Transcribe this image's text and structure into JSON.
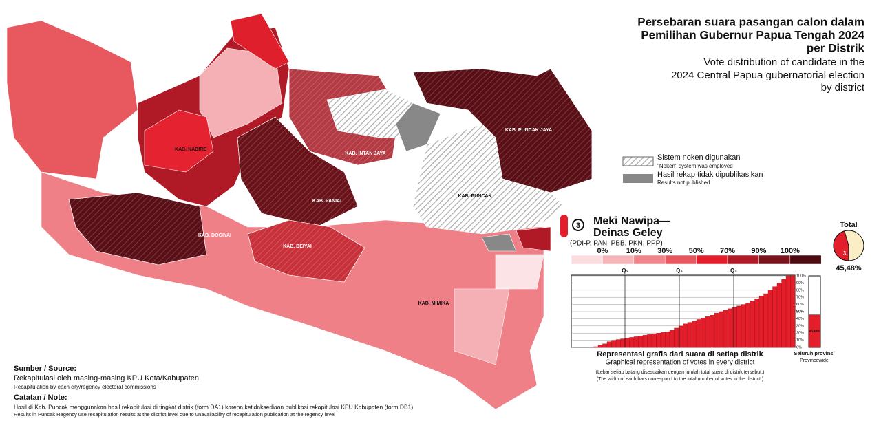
{
  "header": {
    "title": [
      "Persebaran suara pasangan calon dalam",
      "Pemilihan Gubernur Papua Tengah 2024",
      "per Distrik"
    ],
    "subtitle": [
      "Vote distribution of candidate in the",
      "2024 Central Papua gubernatorial election",
      "by district"
    ]
  },
  "legend": {
    "items": [
      {
        "label": "Sistem noken digunakan",
        "sublabel": "\"Noken\" system was employed"
      },
      {
        "label": "Hasil rekap tidak dipublikasikan",
        "sublabel": "Results not published"
      }
    ]
  },
  "regencies": [
    "KAB. NABIRE",
    "KAB. INTAN JAYA",
    "KAB. PUNCAK JAYA",
    "KAB. PANIAI",
    "KAB. PUNCAK",
    "KAB. DOGIYAI",
    "KAB. DEIYAI",
    "KAB. MIMIKA"
  ],
  "candidate": {
    "number": "3",
    "name": [
      "Meki Nawipa—",
      "Deinas Geley"
    ],
    "parties": "(PDI-P, PAN, PBB, PKN, PPP)"
  },
  "scale": {
    "labels": [
      "0%",
      "10%",
      "30%",
      "50%",
      "70%",
      "90%",
      "100%"
    ],
    "colors": [
      "#fbdde0",
      "#f6b5b9",
      "#ef858b",
      "#e8565e",
      "#e31e2a",
      "#b01a26",
      "#7a141c",
      "#4d0b11"
    ]
  },
  "total": {
    "title": "Total",
    "value": 45.48,
    "label": "45,48%"
  },
  "district_chart": {
    "quartiles": [
      "Q₁",
      "Q₂",
      "Q₃"
    ],
    "yticks": [
      {
        "value": 100,
        "label": "100%"
      },
      {
        "value": 90,
        "label": "90%"
      },
      {
        "value": 80,
        "label": "80%"
      },
      {
        "value": 70,
        "label": "70%"
      },
      {
        "value": 60,
        "label": "60%"
      },
      {
        "value": 50,
        "label": "50%"
      },
      {
        "value": 40,
        "label": "40%"
      },
      {
        "value": 30,
        "label": "30%"
      },
      {
        "value": 20,
        "label": "20%"
      },
      {
        "value": 10,
        "label": "10%"
      },
      {
        "value": 0,
        "label": "0%"
      }
    ],
    "values": [
      0,
      0,
      0,
      0,
      0,
      1,
      3,
      5,
      8,
      10,
      11,
      12,
      13,
      14,
      15,
      16,
      17,
      18,
      19,
      20,
      21,
      22,
      24,
      27,
      30,
      33,
      35,
      37,
      39,
      41,
      43,
      45,
      48,
      50,
      52,
      54,
      56,
      58,
      60,
      62,
      65,
      68,
      72,
      75,
      80,
      85,
      90,
      95,
      100,
      100
    ],
    "title": "Representasi grafis dari suara di setiap distrik",
    "subtitle": "Graphical representation of votes in every district",
    "notes": [
      "(Lebar setiap batang disesuaikan dengan jumlah total suara di distrik tersebut.)",
      "(The width of each bars correspond to the total number of votes in the district.)"
    ],
    "province_title": "Seluruh provinsi",
    "province_subtitle": "Provincewide"
  },
  "source": {
    "heading": "Sumber / Source:",
    "line": "Rekapitulasi oleh masing-masing KPU Kota/Kabupaten",
    "subline": "Recapitulation by each city/regency electoral commissions"
  },
  "note": {
    "heading": "Catatan / Note:",
    "line": "Hasil di Kab. Puncak menggunakan hasil rekapitulasi di tingkat distrik (form DA1) karena ketidaksediaan publikasi rekapitulasi KPU Kabupaten (form DB1)",
    "subline": "Results in Puncak Regency use recapitulation results at the district level due to unavailability of recapitulation publication at the regency level"
  }
}
